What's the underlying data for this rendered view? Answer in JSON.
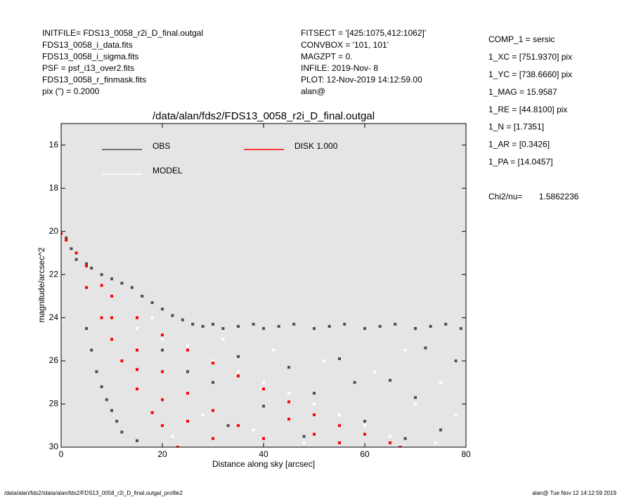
{
  "chart_data": {
    "type": "scatter",
    "title": "/data/alan/fds2/FDS13_0058_r2i_D_final.outgal",
    "x_label": "Distance along sky [arcsec]",
    "y_label": "magnitude/arcsec^2",
    "header_left": [
      "INITFILE= FDS13_0058_r2i_D_final.outgal",
      "FDS13_0058_i_data.fits",
      "FDS13_0058_i_sigma.fits",
      "PSF     = psf_i13_over2.fits",
      "FDS13_0058_r_finmask.fits",
      "pix (\") =  0.2000"
    ],
    "header_middle": [
      "FITSECT = '[425:1075,412:1062]'",
      "CONVBOX = '101, 101'",
      "MAGZPT =                0.",
      "INFILE: 2019-Nov- 8",
      "PLOT: 12-Nov-2019 14:12:59.00",
      "alan@"
    ],
    "fit_params": [
      "COMP_1  = sersic",
      "1_XC    = [751.9370] pix",
      "1_YC    = [738.6660] pix",
      "1_MAG   = 15.9587",
      "1_RE    = [44.8100] pix",
      "1_N     = [1.7351]",
      "1_AR    = [0.3426]",
      "1_PA    = [14.0457]"
    ],
    "chi2": "Chi2/nu=       1.5862236",
    "footer_left": "/data/alan/fds2//data/alan/fds2/FDS13_0058_r2i_D_final.outgal_profile2",
    "footer_right": "alan@   Tue Nov 12 14:12:59 2019",
    "xlim": [
      0,
      80
    ],
    "ylim": [
      30,
      15
    ],
    "xticks": [
      0,
      20,
      40,
      60,
      80
    ],
    "yticks": [
      16,
      18,
      20,
      22,
      24,
      26,
      28,
      30
    ],
    "background": "#e5e5e5",
    "series": [
      {
        "name": "OBS",
        "color": "#4d4d4d",
        "x": [
          5,
          6,
          8,
          10,
          12,
          14,
          16,
          18,
          20,
          22,
          24,
          26,
          28,
          30,
          32,
          35,
          38,
          40,
          43,
          46,
          50,
          53,
          56,
          60,
          63,
          66,
          70,
          73,
          76,
          79,
          5,
          6,
          7,
          8,
          9,
          10,
          11,
          12,
          15,
          25,
          30,
          35,
          40,
          45,
          50,
          55,
          60,
          65,
          70,
          75,
          78,
          20,
          33,
          48,
          58,
          68,
          72,
          1,
          2,
          3
        ],
        "values": [
          21.5,
          21.7,
          22.0,
          22.2,
          22.4,
          22.6,
          23.0,
          23.3,
          23.6,
          23.9,
          24.1,
          24.3,
          24.4,
          24.3,
          24.5,
          24.4,
          24.3,
          24.5,
          24.4,
          24.3,
          24.5,
          24.4,
          24.3,
          24.5,
          24.4,
          24.3,
          24.5,
          24.4,
          24.3,
          24.5,
          24.5,
          25.5,
          26.5,
          27.2,
          27.8,
          28.3,
          28.8,
          29.3,
          29.7,
          26.5,
          27.0,
          25.8,
          28.1,
          26.3,
          27.5,
          25.9,
          28.8,
          26.9,
          27.7,
          29.2,
          26.0,
          25.5,
          29.0,
          29.5,
          27.0,
          29.6,
          25.4,
          20.3,
          20.8,
          21.3
        ]
      },
      {
        "name": "MODEL",
        "color": "#ffffff",
        "x": [
          10,
          15,
          20,
          25,
          30,
          35,
          40,
          45,
          50,
          55,
          60,
          65,
          70,
          75,
          78,
          22,
          28,
          38,
          48,
          62,
          68,
          74,
          18,
          32,
          42,
          52
        ],
        "values": [
          24.0,
          24.5,
          25.0,
          25.3,
          26.0,
          26.5,
          27.0,
          27.5,
          28.0,
          28.5,
          29.0,
          29.5,
          28.0,
          27.0,
          28.5,
          29.5,
          28.5,
          29.2,
          29.8,
          26.5,
          25.5,
          29.8,
          24.0,
          25.0,
          25.5,
          26.0
        ]
      },
      {
        "name": "DISK  1.000",
        "color": "#ff0000",
        "x": [
          0,
          1,
          3,
          5,
          8,
          10,
          15,
          20,
          25,
          30,
          35,
          40,
          45,
          50,
          55,
          60,
          65,
          67,
          5,
          8,
          10,
          12,
          15,
          18,
          20,
          23,
          10,
          15,
          20,
          25,
          30,
          35,
          40,
          15,
          20,
          25,
          30,
          45,
          50,
          55
        ],
        "values": [
          20.1,
          20.4,
          21.0,
          21.6,
          22.5,
          23.0,
          24.0,
          24.8,
          25.5,
          26.1,
          26.7,
          27.3,
          27.9,
          28.5,
          29.0,
          29.4,
          29.8,
          30.0,
          22.6,
          24.0,
          25.0,
          26.0,
          27.3,
          28.4,
          29.0,
          30.0,
          24.0,
          25.5,
          26.5,
          27.5,
          28.3,
          29.0,
          29.6,
          26.4,
          27.8,
          28.8,
          29.6,
          28.7,
          29.4,
          29.8
        ]
      }
    ]
  }
}
